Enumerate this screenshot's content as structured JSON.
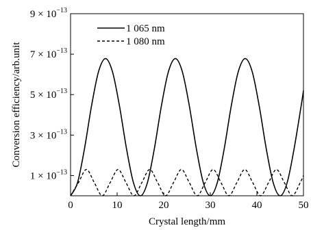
{
  "chart_data": {
    "type": "line",
    "xlabel": "Crystal length/mm",
    "ylabel": "Conversion efficiency/arb.unit",
    "xlim": [
      0,
      50
    ],
    "ylim": [
      0,
      9e-13
    ],
    "x_ticks": [
      0,
      10,
      20,
      30,
      40,
      50
    ],
    "x_tick_labels": [
      "0",
      "10",
      "20",
      "30",
      "40",
      "50"
    ],
    "y_ticks": [
      1e-13,
      3e-13,
      5e-13,
      7e-13,
      9e-13
    ],
    "y_tick_labels": [
      {
        "mantissa": "1 × 10",
        "exponent": "−13"
      },
      {
        "mantissa": "3 × 10",
        "exponent": "−13"
      },
      {
        "mantissa": "5 × 10",
        "exponent": "−13"
      },
      {
        "mantissa": "7 × 10",
        "exponent": "−13"
      },
      {
        "mantissa": "9 × 10",
        "exponent": "−13"
      }
    ],
    "grid": false,
    "legend_position": "top-left",
    "series": [
      {
        "name": "1 065 nm",
        "style": "solid",
        "x": [
          0,
          1.5,
          3,
          4.5,
          6,
          7.5,
          9,
          10.5,
          12,
          13.5,
          15,
          16.5,
          18,
          19.5,
          21,
          22.5,
          24,
          25.5,
          27,
          28.5,
          30,
          31.5,
          33,
          34.5,
          36,
          37.5,
          39,
          40.5,
          42,
          43.5,
          45,
          46.5,
          48,
          49.5,
          50
        ],
        "values": [
          0,
          6.5e-14,
          2.34e-13,
          4.44e-13,
          6.13e-13,
          6.78e-13,
          6.13e-13,
          4.44e-13,
          2.34e-13,
          6.5e-14,
          0,
          6.5e-14,
          2.34e-13,
          4.44e-13,
          6.13e-13,
          6.78e-13,
          6.13e-13,
          4.44e-13,
          2.34e-13,
          6.5e-14,
          0,
          6.5e-14,
          2.34e-13,
          4.44e-13,
          6.13e-13,
          6.78e-13,
          6.13e-13,
          4.44e-13,
          2.34e-13,
          6.5e-14,
          0,
          6.5e-14,
          2.34e-13,
          4.44e-13,
          5.2e-13
        ]
      },
      {
        "name": "1 080 nm",
        "style": "dashed",
        "x": [
          0,
          1.7,
          3.4,
          5.1,
          6.8,
          8.5,
          10.2,
          11.9,
          13.6,
          15.3,
          17.0,
          18.7,
          20.4,
          22.1,
          23.8,
          25.5,
          27.2,
          28.9,
          30.6,
          32.3,
          34.0,
          35.7,
          37.4,
          39.1,
          40.8,
          42.5,
          44.2,
          45.9,
          47.6,
          49.3,
          50
        ],
        "values": [
          0,
          6.5e-14,
          1.3e-13,
          6.5e-14,
          0,
          6.5e-14,
          1.3e-13,
          6.5e-14,
          0,
          6.5e-14,
          1.3e-13,
          6.5e-14,
          0,
          6.5e-14,
          1.3e-13,
          6.5e-14,
          0,
          6.5e-14,
          1.3e-13,
          6.5e-14,
          0,
          6.5e-14,
          1.3e-13,
          6.5e-14,
          0,
          6.5e-14,
          1.3e-13,
          6.5e-14,
          0,
          6.5e-14,
          1e-13
        ]
      }
    ]
  }
}
